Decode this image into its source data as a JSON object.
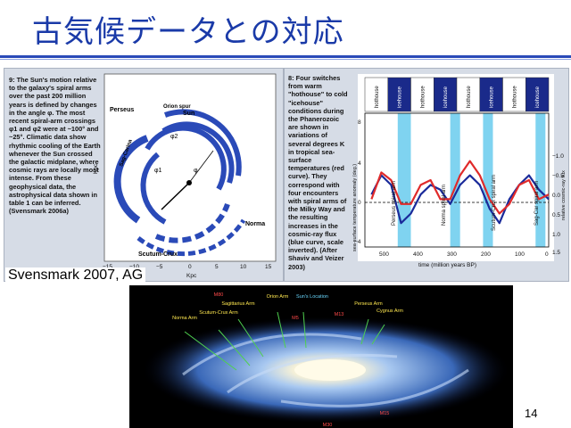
{
  "slide": {
    "title": "古気候データとの対応",
    "credit": "Svensmark 2007, AG",
    "page_number": "14"
  },
  "colors": {
    "title": "#1a3aa8",
    "arm_blue": "#2a4ab8",
    "cosmic_ray_line": "#1a2a9a",
    "temperature_line": "#e02a2a",
    "spiral_band": "#7fd3f0",
    "icehouse_box": "#1a2a8a"
  },
  "left_panel": {
    "caption": "9: The Sun's motion relative to the galaxy's spiral arms over the past 200 million years is defined by changes in the angle φ. The most recent spiral-arm crossings φ1 and φ2 were at ~100° and ~25°. Climatic data show rhythmic cooling of the Earth whenever the Sun crossed the galactic midplane, where cosmic rays are locally most intense. From these geophysical data, the astrophysical data shown in table 1 can be inferred. (Svensmark 2006a)",
    "arm_labels": [
      "Perseus",
      "Orion spur",
      "Sun",
      "Sag-Carina",
      "Norma",
      "Scutum-Crux"
    ],
    "angle_labels": [
      "φ2",
      "φ1",
      "φ"
    ],
    "x_axis_label": "Kpc",
    "y_axis_label": "Kpc",
    "x_ticks": [
      "−15",
      "−10",
      "−5",
      "0",
      "5",
      "10",
      "15"
    ],
    "y_ticks": [
      "15",
      "10",
      "5",
      "0",
      "−5",
      "−10",
      "−15"
    ]
  },
  "right_panel": {
    "caption": "8: Four switches from warm \"hothouse\" to cold \"icehouse\" conditions during the Phanerozoic are shown in variations of several degrees K in tropical sea-surface temperatures (red curve). They correspond with four encounters with spiral arms of the Milky Way and the resulting increases in the cosmic-ray flux (blue curve, scale inverted). (After Shaviv and Veizer 2003)",
    "climate_states": [
      "hothouse",
      "icehouse",
      "hothouse",
      "icehouse",
      "hothouse",
      "icehouse",
      "hothouse",
      "icehouse"
    ],
    "spiral_arm_labels": [
      "Perseus spiral arm",
      "Norma spiral arm",
      "Scutum-Crux spiral arm",
      "Sag-Car spiral arm"
    ],
    "y_axis_label": "sea-surface temperature anomaly (deg.)",
    "y2_axis_label": "relative cosmic-ray flux",
    "x_axis_label": "time (million years BP)",
    "y_ticks": [
      "8",
      "4",
      "0",
      "−4"
    ],
    "y2_ticks": [
      "−1.0",
      "−0.5",
      "0.0",
      "0.5",
      "1.0",
      "1.5"
    ],
    "x_ticks": [
      "500",
      "400",
      "300",
      "200",
      "100",
      "0"
    ]
  },
  "galaxy_image": {
    "labels": [
      "M80",
      "Norma Arm",
      "Scutum-Crux Arm",
      "Sagittarius Arm",
      "Orion Arm",
      "Sun's Location",
      "M5",
      "M13",
      "Perseus Arm",
      "Cygnus Arm",
      "M15",
      "M30"
    ]
  },
  "chart_data": {
    "type": "line",
    "x": [
      540,
      510,
      480,
      450,
      420,
      390,
      360,
      330,
      300,
      270,
      240,
      210,
      180,
      150,
      120,
      90,
      60,
      30,
      0
    ],
    "xlabel": "time (million years BP)",
    "ylabel": "sea-surface temperature anomaly (deg.)",
    "xlim": [
      560,
      0
    ],
    "ylim": [
      -6,
      8
    ],
    "series": [
      {
        "name": "",
        "values": [
          -0.5,
          1.5,
          0.5,
          -3.5,
          -2.5,
          -0.5,
          0.5,
          0.0,
          -1.5,
          0.5,
          1.5,
          0.5,
          -2.0,
          -3.5,
          -1.0,
          0.5,
          1.5,
          0.0,
          -1.0
        ]
      },
      {
        "name": "",
        "values": [
          -1.0,
          1.8,
          1.0,
          -1.5,
          -1.5,
          0.5,
          1.0,
          -1.0,
          -1.0,
          1.5,
          3.0,
          1.5,
          -1.0,
          -2.5,
          -1.5,
          0.5,
          1.0,
          -1.0,
          -0.5
        ]
      }
    ]
  }
}
